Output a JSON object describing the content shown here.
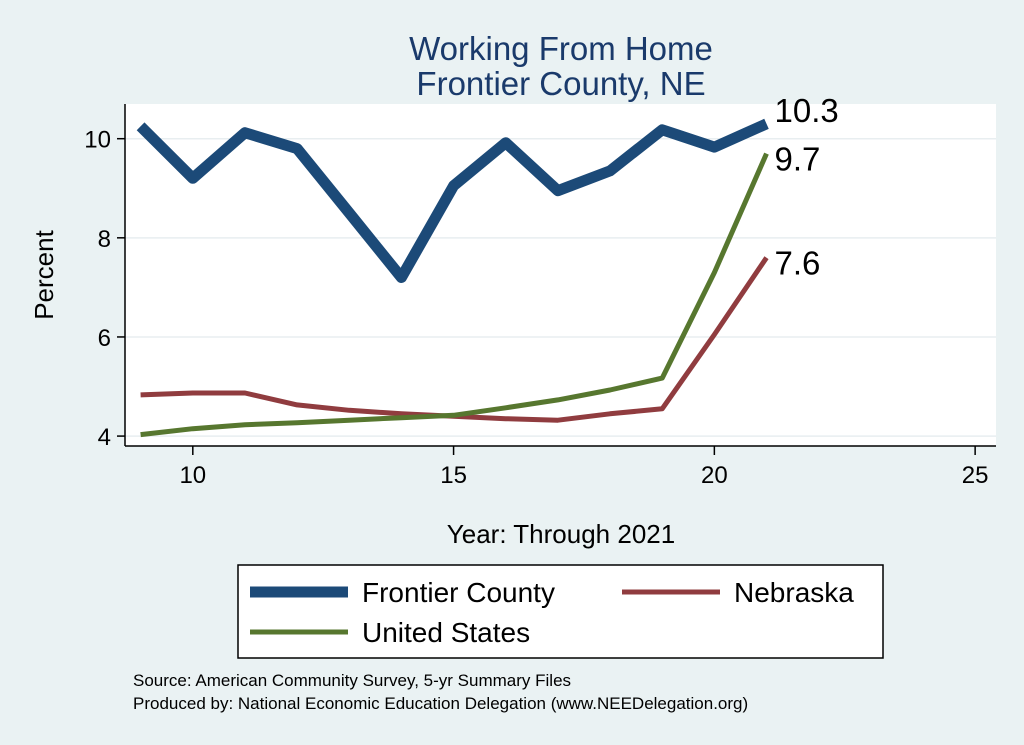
{
  "chart_data": {
    "type": "line",
    "title": [
      "Working From Home",
      "Frontier County, NE"
    ],
    "xlabel": "Year: Through 2021",
    "ylabel": "Percent",
    "xlim": [
      8.7,
      25.4
    ],
    "ylim": [
      3.8,
      10.7
    ],
    "xticks": [
      10,
      15,
      20,
      25
    ],
    "yticks": [
      4,
      6,
      8,
      10
    ],
    "grid": true,
    "legend_position": "bottom",
    "series": [
      {
        "name": "Frontier County",
        "color": "#1c4a78",
        "width": 11,
        "x": [
          9,
          10,
          11,
          12,
          13,
          14,
          15,
          16,
          17,
          18,
          19,
          20,
          21
        ],
        "y": [
          10.25,
          9.2,
          10.12,
          9.8,
          8.5,
          7.2,
          9.05,
          9.92,
          8.95,
          9.35,
          10.18,
          9.83,
          10.3
        ],
        "end_label": "10.3"
      },
      {
        "name": "Nebraska",
        "color": "#903c3f",
        "width": 5,
        "x": [
          9,
          10,
          11,
          12,
          13,
          14,
          15,
          16,
          17,
          18,
          19,
          20,
          21
        ],
        "y": [
          4.83,
          4.87,
          4.87,
          4.63,
          4.52,
          4.45,
          4.4,
          4.35,
          4.32,
          4.45,
          4.55,
          6.05,
          7.6
        ],
        "end_label": "7.6"
      },
      {
        "name": "United States",
        "color": "#57772f",
        "width": 5,
        "x": [
          9,
          10,
          11,
          12,
          13,
          14,
          15,
          16,
          17,
          18,
          19,
          20,
          21
        ],
        "y": [
          4.03,
          4.15,
          4.23,
          4.27,
          4.32,
          4.37,
          4.42,
          4.57,
          4.73,
          4.93,
          5.17,
          7.3,
          9.7
        ],
        "end_label": "9.7"
      }
    ]
  },
  "notes": {
    "source": "Source: American Community Survey, 5-yr Summary Files",
    "produced": "Produced by: National Economic Education Delegation (www.NEEDelegation.org)"
  }
}
